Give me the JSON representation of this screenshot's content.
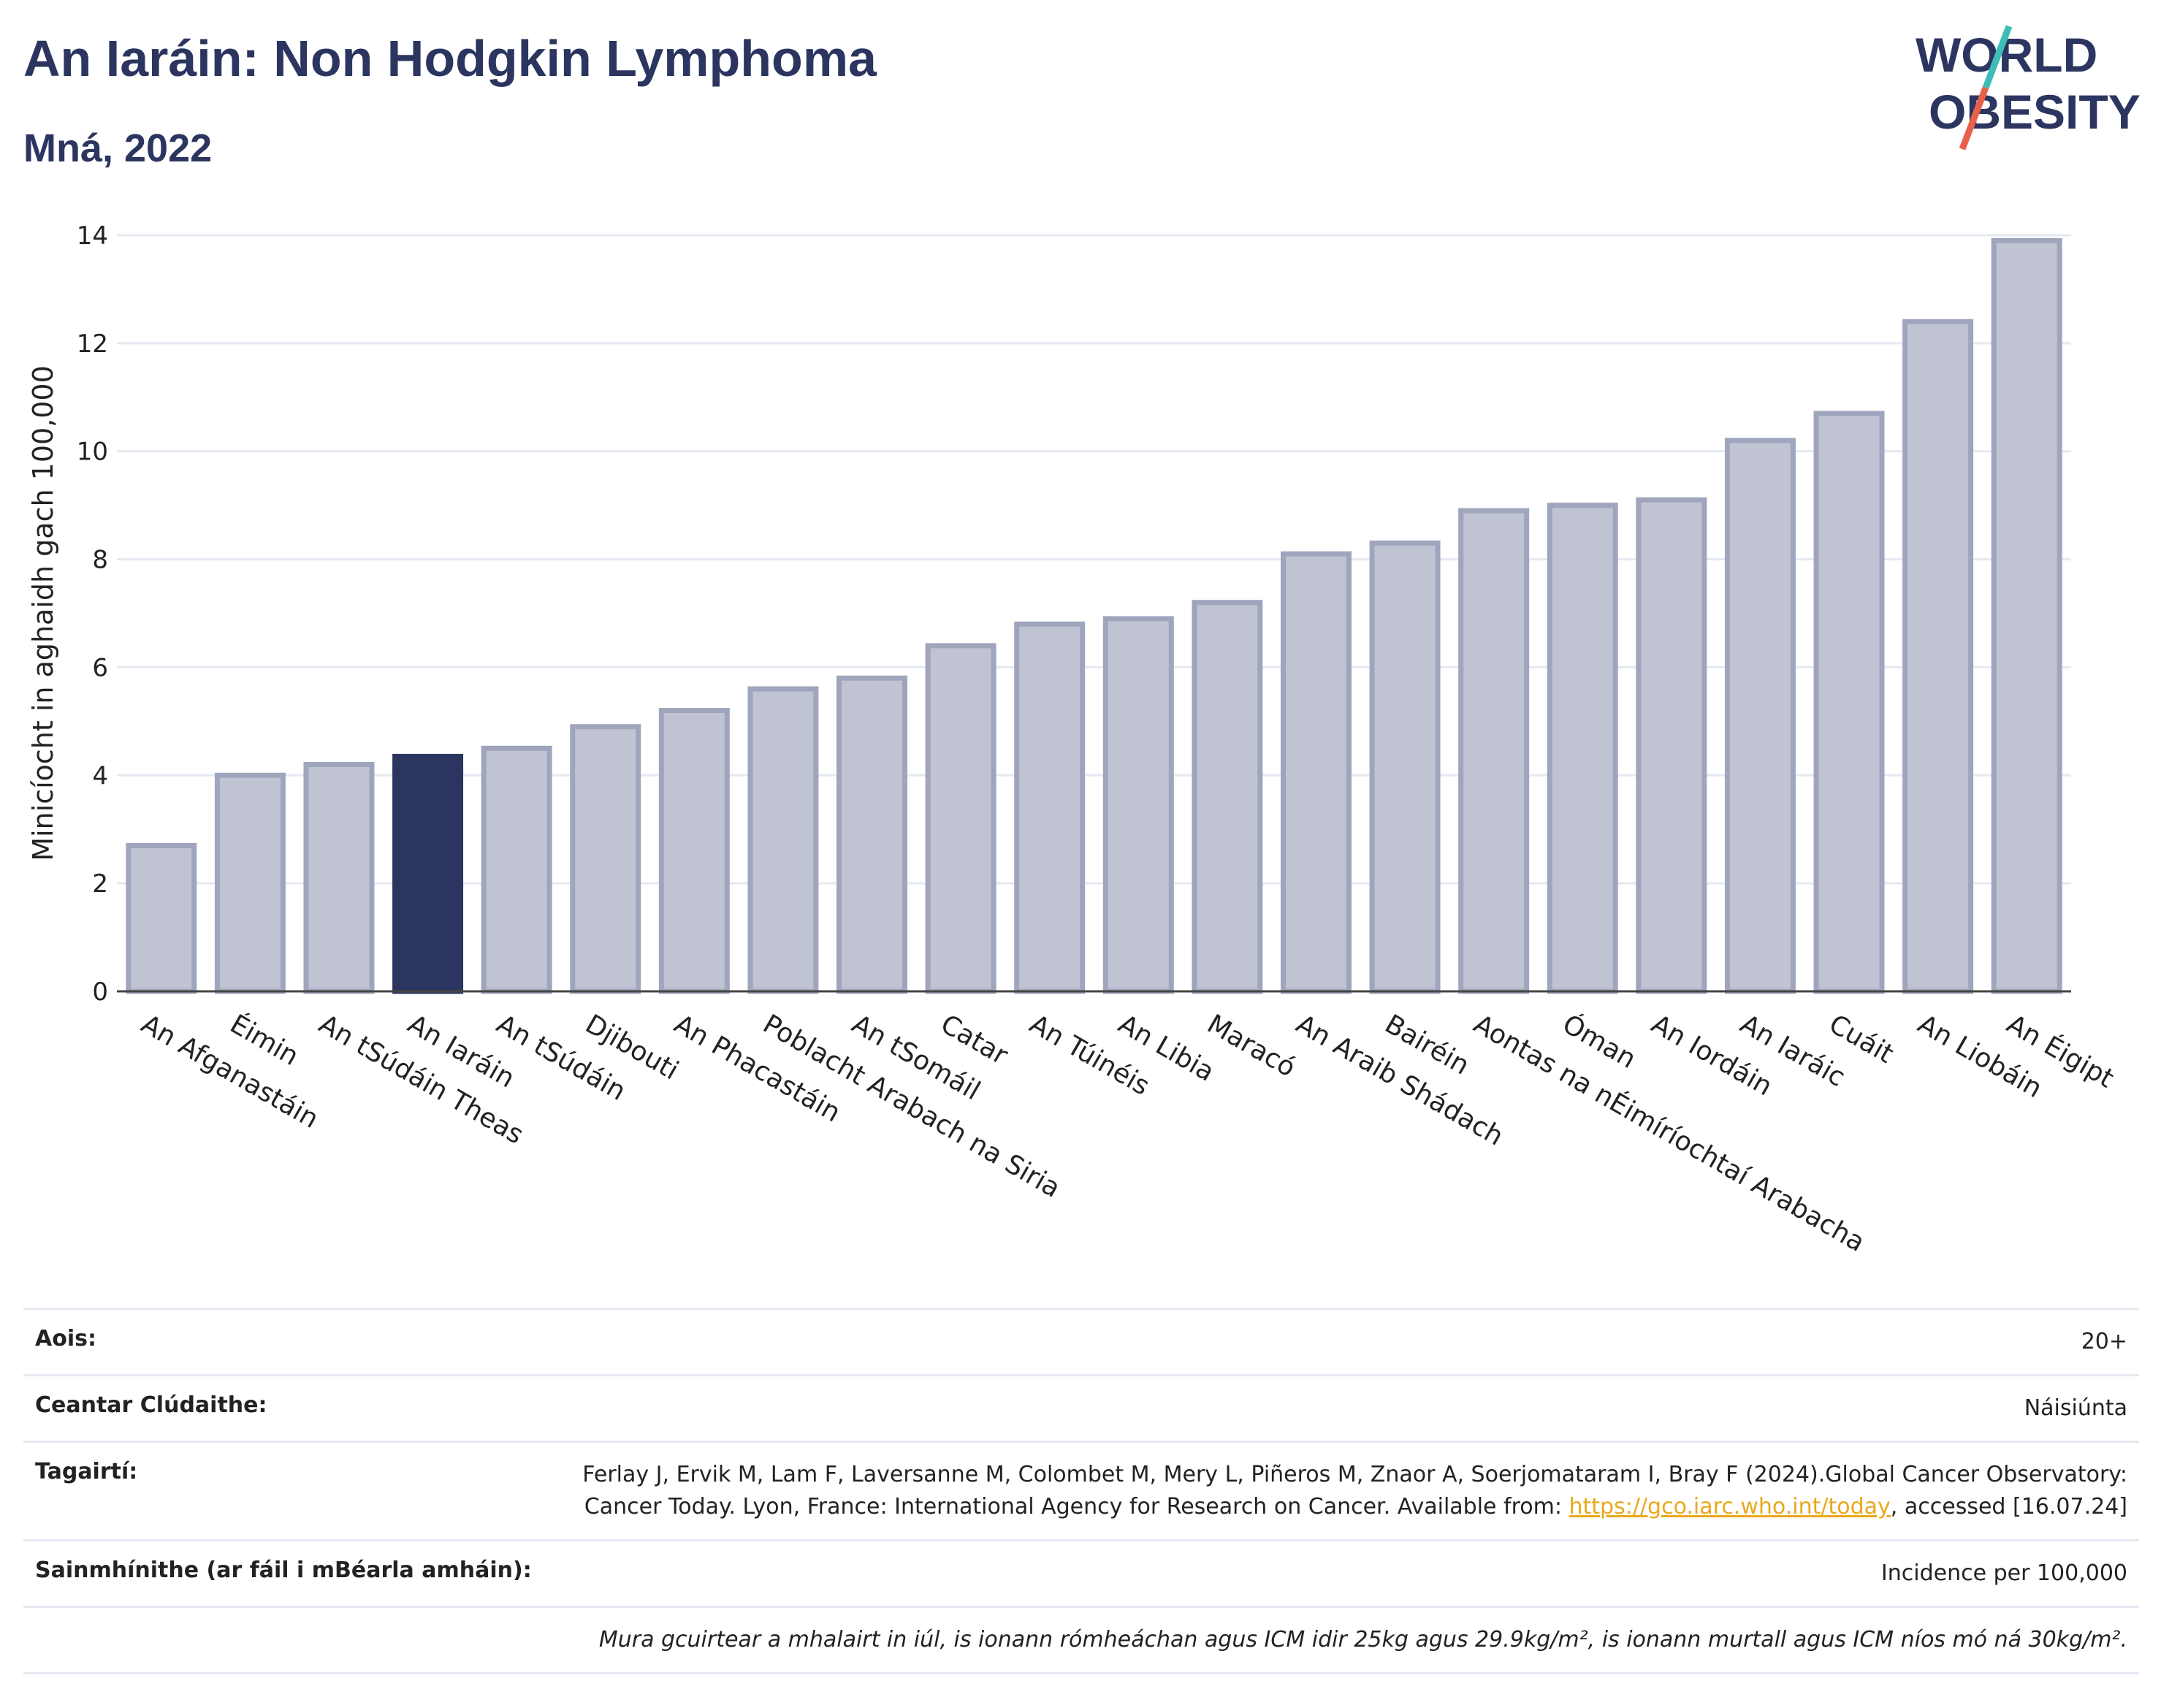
{
  "header": {
    "title": "An Iaráin: Non Hodgkin Lymphoma",
    "subtitle": "Mná, 2022",
    "logo_line1": "WORLD",
    "logo_line2": "OBESITY"
  },
  "colors": {
    "bar": "#c0c4d2",
    "bar_stroke": "#9fa5bd",
    "highlight": "#2b3560",
    "title": "#2b3560",
    "link": "#e8a91c",
    "logo_teal": "#3dbdb5",
    "logo_red": "#e8604c"
  },
  "chart_data": {
    "type": "bar",
    "ylabel": "Minicíocht in aghaidh gach 100,000",
    "ylim": [
      0,
      14
    ],
    "yticks": [
      0,
      2,
      4,
      6,
      8,
      10,
      12,
      14
    ],
    "grid": true,
    "highlight": "An Iaráin",
    "categories": [
      "An Afganastáin",
      "Éimin",
      "An tSúdáin Theas",
      "An Iaráin",
      "An tSúdáin",
      "Djibouti",
      "An Phacastáin",
      "Poblacht Arabach na Siria",
      "An tSomáil",
      "Catar",
      "An Túinéis",
      "An Libia",
      "Maracó",
      "An Araib Shádach",
      "Bairéin",
      "Aontas na nÉimíríochtaí Arabacha",
      "Óman",
      "An Iordáin",
      "An Iaráic",
      "Cuáit",
      "An Liobáin",
      "An Éigipt"
    ],
    "values": [
      2.7,
      4.0,
      4.2,
      4.35,
      4.5,
      4.9,
      5.2,
      5.6,
      5.8,
      6.4,
      6.8,
      6.9,
      7.2,
      8.1,
      8.3,
      8.9,
      9.0,
      9.1,
      10.2,
      10.7,
      12.4,
      13.9
    ]
  },
  "meta": {
    "age_label": "Aois:",
    "age_value": "20+",
    "coverage_label": "Ceantar Clúdaithe:",
    "coverage_value": "Náisiúnta",
    "references_label": "Tagairtí:",
    "references_text": "Ferlay J, Ervik M, Lam F, Laversanne M, Colombet M, Mery L, Piñeros M, Znaor A, Soerjomataram I, Bray F (2024).Global Cancer Observatory: Cancer Today. Lyon, France: International Agency for Research on Cancer. Available from: ",
    "references_link": "https://gco.iarc.who.int/today",
    "references_suffix": ", accessed [16.07.24]",
    "definitions_label": "Sainmhínithe (ar fáil i mBéarla amháin):",
    "definitions_value": "Incidence per 100,000",
    "note": "Mura gcuirtear a mhalairt in iúl, is ionann rómheáchan agus ICM idir 25kg agus 29.9kg/m², is ionann murtall agus ICM níos mó ná 30kg/m²."
  }
}
